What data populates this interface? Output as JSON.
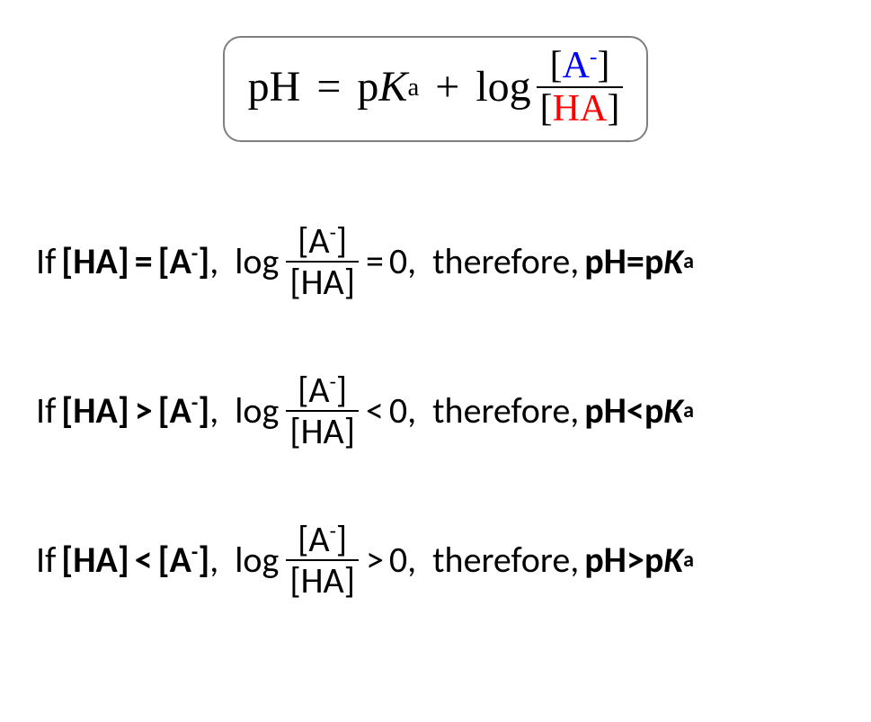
{
  "colors": {
    "blue": "#0000ff",
    "red": "#ff0000",
    "border": "#7f7f7f",
    "text": "#000000",
    "background": "#ffffff"
  },
  "typography": {
    "main_equation_font": "Times New Roman",
    "case_font": "Calibri",
    "main_size_pt": 36,
    "case_size_pt": 30
  },
  "main_equation": {
    "lhs": "pH",
    "eq": "=",
    "pK": "p",
    "K": "K",
    "Ksub": "a",
    "plus": "+",
    "log": "log",
    "numerator_lb": "[",
    "numerator_A": "A",
    "numerator_sup": "-",
    "numerator_rb": "]",
    "denominator_lb": "[",
    "denominator_HA": "HA",
    "denominator_rb": "]"
  },
  "cases": [
    {
      "if": "If",
      "cond_left": "[HA]",
      "cond_op": "=",
      "cond_right_lb": "[A",
      "cond_right_sup": "-",
      "cond_right_rb": "]",
      "comma1": ",",
      "log": "log",
      "frac_num_lb": "[A",
      "frac_num_sup": "-",
      "frac_num_rb": "]",
      "frac_den": "[HA]",
      "rel_op": "=",
      "rel_val": "0,",
      "therefore": "therefore,",
      "res_lhs": "pH",
      "res_op": "=",
      "res_pK": "p",
      "res_K": "K",
      "res_Ksub": "a"
    },
    {
      "if": "If",
      "cond_left": "[HA]",
      "cond_op": ">",
      "cond_right_lb": "[A",
      "cond_right_sup": "-",
      "cond_right_rb": "]",
      "comma1": ",",
      "log": "log",
      "frac_num_lb": "[A",
      "frac_num_sup": "-",
      "frac_num_rb": "]",
      "frac_den": "[HA]",
      "rel_op": "<",
      "rel_val": "0,",
      "therefore": "therefore,",
      "res_lhs": "pH",
      "res_op": "<",
      "res_pK": "p",
      "res_K": "K",
      "res_Ksub": "a"
    },
    {
      "if": "If",
      "cond_left": "[HA]",
      "cond_op": "<",
      "cond_right_lb": "[A",
      "cond_right_sup": "-",
      "cond_right_rb": "]",
      "comma1": ",",
      "log": "log",
      "frac_num_lb": "[A",
      "frac_num_sup": "-",
      "frac_num_rb": "]",
      "frac_den": "[HA]",
      "rel_op": ">",
      "rel_val": "0,",
      "therefore": "therefore,",
      "res_lhs": "pH",
      "res_op": ">",
      "res_pK": "p",
      "res_K": "K",
      "res_Ksub": "a"
    }
  ]
}
